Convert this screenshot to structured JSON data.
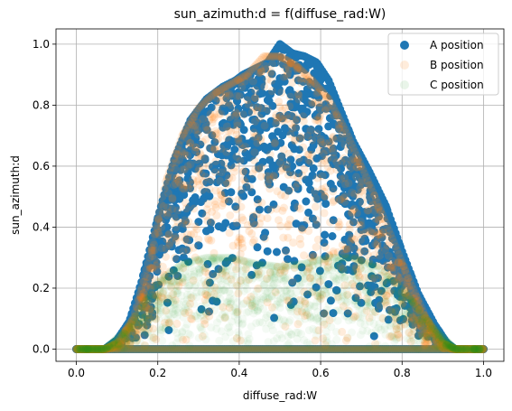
{
  "chart_data": {
    "type": "scatter",
    "title": "sun_azimuth:d = f(diffuse_rad:W)",
    "xlabel": "diffuse_rad:W",
    "ylabel": "sun_azimuth:d",
    "xlim": [
      -0.05,
      1.05
    ],
    "ylim": [
      -0.04,
      1.05
    ],
    "xticks": [
      "0.0",
      "0.2",
      "0.4",
      "0.6",
      "0.8",
      "1.0"
    ],
    "xtick_values": [
      0.0,
      0.2,
      0.4,
      0.6,
      0.8,
      1.0
    ],
    "yticks": [
      "0.0",
      "0.2",
      "0.4",
      "0.6",
      "0.8",
      "1.0"
    ],
    "ytick_values": [
      0.0,
      0.2,
      0.4,
      0.6,
      0.8,
      1.0
    ],
    "grid": true,
    "legend_position": "top-right",
    "series": [
      {
        "name": "A position",
        "color": "#1f77b4",
        "opacity": 1.0,
        "envelope": [
          [
            0.0,
            0.0
          ],
          [
            0.07,
            0.0
          ],
          [
            0.1,
            0.03
          ],
          [
            0.13,
            0.09
          ],
          [
            0.16,
            0.22
          ],
          [
            0.2,
            0.43
          ],
          [
            0.24,
            0.62
          ],
          [
            0.28,
            0.75
          ],
          [
            0.32,
            0.82
          ],
          [
            0.36,
            0.86
          ],
          [
            0.39,
            0.88
          ],
          [
            0.41,
            0.9
          ],
          [
            0.44,
            0.92
          ],
          [
            0.47,
            0.94
          ],
          [
            0.5,
            1.0
          ],
          [
            0.53,
            0.97
          ],
          [
            0.56,
            0.96
          ],
          [
            0.59,
            0.94
          ],
          [
            0.62,
            0.88
          ],
          [
            0.65,
            0.78
          ],
          [
            0.68,
            0.68
          ],
          [
            0.72,
            0.58
          ],
          [
            0.76,
            0.47
          ],
          [
            0.8,
            0.32
          ],
          [
            0.84,
            0.18
          ],
          [
            0.88,
            0.08
          ],
          [
            0.91,
            0.02
          ],
          [
            0.93,
            0.0
          ],
          [
            1.0,
            0.0
          ]
        ]
      },
      {
        "name": "B position",
        "color": "#ff7f0e",
        "opacity": 0.15,
        "envelope": [
          [
            0.0,
            0.0
          ],
          [
            0.07,
            0.0
          ],
          [
            0.1,
            0.02
          ],
          [
            0.14,
            0.1
          ],
          [
            0.18,
            0.3
          ],
          [
            0.22,
            0.55
          ],
          [
            0.26,
            0.7
          ],
          [
            0.3,
            0.79
          ],
          [
            0.34,
            0.84
          ],
          [
            0.38,
            0.87
          ],
          [
            0.42,
            0.9
          ],
          [
            0.46,
            0.96
          ],
          [
            0.5,
            0.96
          ],
          [
            0.54,
            0.93
          ],
          [
            0.58,
            0.88
          ],
          [
            0.62,
            0.82
          ],
          [
            0.66,
            0.72
          ],
          [
            0.7,
            0.6
          ],
          [
            0.74,
            0.48
          ],
          [
            0.78,
            0.35
          ],
          [
            0.82,
            0.22
          ],
          [
            0.86,
            0.1
          ],
          [
            0.9,
            0.02
          ],
          [
            0.93,
            0.0
          ],
          [
            1.0,
            0.0
          ]
        ]
      },
      {
        "name": "C position",
        "color": "#2ca02c",
        "opacity": 0.05,
        "envelope": [
          [
            0.0,
            0.0
          ],
          [
            0.07,
            0.0
          ],
          [
            0.12,
            0.06
          ],
          [
            0.16,
            0.14
          ],
          [
            0.2,
            0.22
          ],
          [
            0.26,
            0.28
          ],
          [
            0.32,
            0.3
          ],
          [
            0.38,
            0.3
          ],
          [
            0.44,
            0.28
          ],
          [
            0.5,
            0.27
          ],
          [
            0.56,
            0.28
          ],
          [
            0.62,
            0.3
          ],
          [
            0.68,
            0.3
          ],
          [
            0.74,
            0.27
          ],
          [
            0.8,
            0.2
          ],
          [
            0.86,
            0.1
          ],
          [
            0.9,
            0.04
          ],
          [
            0.93,
            0.0
          ],
          [
            1.0,
            0.0
          ]
        ]
      }
    ]
  }
}
